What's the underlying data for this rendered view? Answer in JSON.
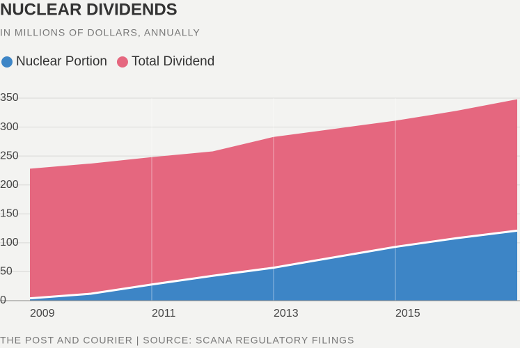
{
  "chart_data": {
    "type": "area",
    "title": "NUCLEAR DIVIDENDS",
    "subtitle": "IN MILLIONS OF DOLLARS, ANNUALLY",
    "source": "THE POST AND COURIER | SOURCE: SCANA REGULATORY FILINGS",
    "x": [
      2009,
      2010,
      2011,
      2012,
      2013,
      2014,
      2015,
      2016,
      2017
    ],
    "series": [
      {
        "name": "Nuclear Portion",
        "color": "#3d85c6",
        "values": [
          4,
          12,
          28,
          43,
          57,
          75,
          93,
          108,
          121
        ]
      },
      {
        "name": "Total Dividend",
        "color": "#e5677f",
        "values": [
          228,
          237,
          248,
          258,
          283,
          297,
          311,
          328,
          348
        ]
      }
    ],
    "xlim": [
      2009,
      2017
    ],
    "xticks": [
      2009,
      2011,
      2013,
      2015
    ],
    "ylim": [
      0,
      350
    ],
    "yticks": [
      0,
      50,
      100,
      150,
      200,
      250,
      300,
      350
    ],
    "grid": true,
    "legend": "top-left"
  }
}
